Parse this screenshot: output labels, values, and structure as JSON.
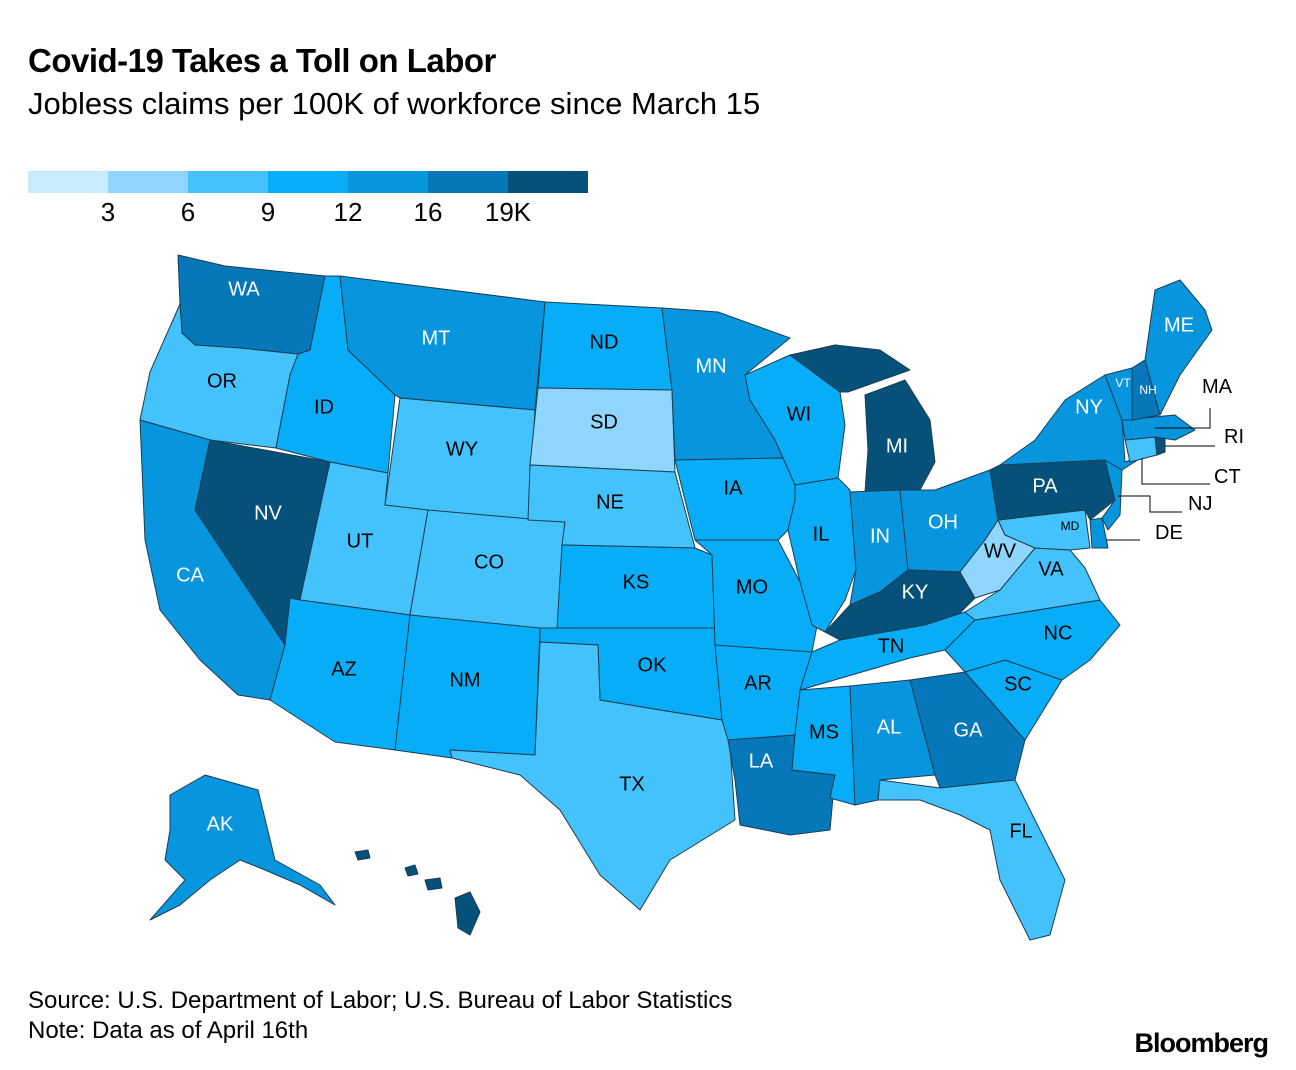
{
  "title": "Covid-19 Takes a Toll on Labor",
  "subtitle": "Jobless claims per 100K of workforce since March 15",
  "legend": {
    "colors": [
      "#c9ecfd",
      "#8ed6fd",
      "#44c2fb",
      "#08adf8",
      "#0796dd",
      "#0677b8",
      "#05517a"
    ],
    "ticks": [
      "3",
      "6",
      "9",
      "12",
      "16",
      "19K"
    ]
  },
  "states": [
    {
      "abbr": "WA",
      "bin": 5,
      "text_color": "#ffffff"
    },
    {
      "abbr": "OR",
      "bin": 2,
      "text_color": "#000000"
    },
    {
      "abbr": "CA",
      "bin": 4,
      "text_color": "#ffffff"
    },
    {
      "abbr": "NV",
      "bin": 6,
      "text_color": "#ffffff"
    },
    {
      "abbr": "ID",
      "bin": 3,
      "text_color": "#000000"
    },
    {
      "abbr": "MT",
      "bin": 4,
      "text_color": "#ffffff"
    },
    {
      "abbr": "WY",
      "bin": 2,
      "text_color": "#000000"
    },
    {
      "abbr": "UT",
      "bin": 2,
      "text_color": "#000000"
    },
    {
      "abbr": "CO",
      "bin": 2,
      "text_color": "#000000"
    },
    {
      "abbr": "AZ",
      "bin": 3,
      "text_color": "#000000"
    },
    {
      "abbr": "NM",
      "bin": 3,
      "text_color": "#000000"
    },
    {
      "abbr": "ND",
      "bin": 3,
      "text_color": "#000000"
    },
    {
      "abbr": "SD",
      "bin": 1,
      "text_color": "#000000"
    },
    {
      "abbr": "NE",
      "bin": 2,
      "text_color": "#000000"
    },
    {
      "abbr": "KS",
      "bin": 3,
      "text_color": "#000000"
    },
    {
      "abbr": "OK",
      "bin": 3,
      "text_color": "#000000"
    },
    {
      "abbr": "TX",
      "bin": 2,
      "text_color": "#000000"
    },
    {
      "abbr": "MN",
      "bin": 4,
      "text_color": "#ffffff"
    },
    {
      "abbr": "IA",
      "bin": 3,
      "text_color": "#000000"
    },
    {
      "abbr": "MO",
      "bin": 3,
      "text_color": "#000000"
    },
    {
      "abbr": "AR",
      "bin": 3,
      "text_color": "#000000"
    },
    {
      "abbr": "LA",
      "bin": 5,
      "text_color": "#ffffff"
    },
    {
      "abbr": "WI",
      "bin": 3,
      "text_color": "#000000"
    },
    {
      "abbr": "IL",
      "bin": 3,
      "text_color": "#000000"
    },
    {
      "abbr": "MI",
      "bin": 6,
      "text_color": "#ffffff"
    },
    {
      "abbr": "IN",
      "bin": 4,
      "text_color": "#ffffff"
    },
    {
      "abbr": "OH",
      "bin": 4,
      "text_color": "#ffffff"
    },
    {
      "abbr": "KY",
      "bin": 6,
      "text_color": "#ffffff"
    },
    {
      "abbr": "TN",
      "bin": 3,
      "text_color": "#000000"
    },
    {
      "abbr": "MS",
      "bin": 3,
      "text_color": "#000000"
    },
    {
      "abbr": "AL",
      "bin": 4,
      "text_color": "#ffffff"
    },
    {
      "abbr": "GA",
      "bin": 5,
      "text_color": "#ffffff"
    },
    {
      "abbr": "FL",
      "bin": 2,
      "text_color": "#000000"
    },
    {
      "abbr": "SC",
      "bin": 3,
      "text_color": "#000000"
    },
    {
      "abbr": "NC",
      "bin": 3,
      "text_color": "#000000"
    },
    {
      "abbr": "VA",
      "bin": 2,
      "text_color": "#000000"
    },
    {
      "abbr": "WV",
      "bin": 1,
      "text_color": "#000000"
    },
    {
      "abbr": "MD",
      "bin": 2,
      "text_color": "#000000"
    },
    {
      "abbr": "DE",
      "bin": 4,
      "text_color": "#000000"
    },
    {
      "abbr": "PA",
      "bin": 6,
      "text_color": "#ffffff"
    },
    {
      "abbr": "NJ",
      "bin": 4,
      "text_color": "#000000"
    },
    {
      "abbr": "NY",
      "bin": 4,
      "text_color": "#ffffff"
    },
    {
      "abbr": "CT",
      "bin": 2,
      "text_color": "#000000"
    },
    {
      "abbr": "RI",
      "bin": 6,
      "text_color": "#000000"
    },
    {
      "abbr": "MA",
      "bin": 4,
      "text_color": "#000000"
    },
    {
      "abbr": "VT",
      "bin": 4,
      "text_color": "#ffffff"
    },
    {
      "abbr": "NH",
      "bin": 5,
      "text_color": "#ffffff"
    },
    {
      "abbr": "ME",
      "bin": 4,
      "text_color": "#ffffff"
    },
    {
      "abbr": "AK",
      "bin": 4,
      "text_color": "#ffffff"
    },
    {
      "abbr": "HI",
      "bin": 6,
      "text_color": "#ffffff"
    }
  ],
  "footer": {
    "source": "Source: U.S. Department of Labor; U.S. Bureau of Labor Statistics",
    "note": "Note: Data as of April 16th"
  },
  "brand": "Bloomberg"
}
